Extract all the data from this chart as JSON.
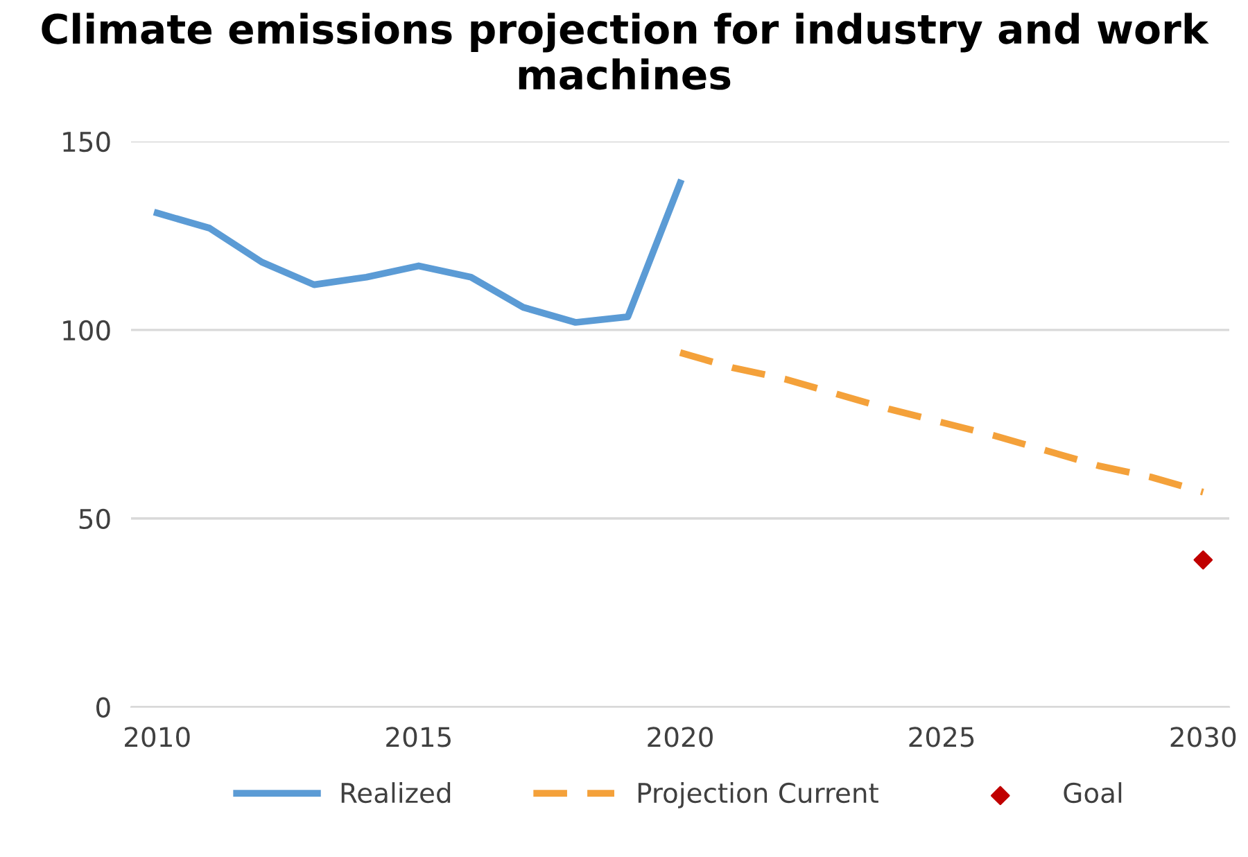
{
  "chart_data": {
    "type": "line",
    "title": "Climate emissions projection for industry and work machines",
    "x": [
      2010,
      2011,
      2012,
      2013,
      2014,
      2015,
      2016,
      2017,
      2018,
      2019,
      2020,
      2021,
      2022,
      2023,
      2024,
      2025,
      2026,
      2027,
      2028,
      2029,
      2030
    ],
    "series": [
      {
        "name": "Realized",
        "color": "#5b9bd5",
        "values": [
          131,
          127,
          118,
          112,
          114,
          117,
          114,
          106,
          102,
          103.5,
          139,
          null,
          null,
          null,
          null,
          null,
          null,
          null,
          null,
          null,
          null
        ],
        "line_style": "solid",
        "marker": "none"
      },
      {
        "name": "Projection Current",
        "color": "#f4a13a",
        "values": [
          null,
          null,
          null,
          null,
          null,
          null,
          null,
          null,
          null,
          null,
          94,
          90,
          87,
          83,
          79,
          75.5,
          72,
          68,
          64,
          61,
          57
        ],
        "line_style": "dashed",
        "marker": "none"
      },
      {
        "name": "Goal",
        "type": "scatter",
        "color": "#c00000",
        "values": [
          null,
          null,
          null,
          null,
          null,
          null,
          null,
          null,
          null,
          null,
          null,
          null,
          null,
          null,
          null,
          null,
          null,
          null,
          null,
          null,
          39
        ],
        "marker": "diamond"
      }
    ],
    "xlim": [
      2009.5,
      2030.5
    ],
    "xticks": [
      2010,
      2015,
      2020,
      2025,
      2030
    ],
    "ylim": [
      0,
      150
    ],
    "yticks": [
      0,
      50,
      100,
      150
    ],
    "grid": "y",
    "legend": "bottom"
  }
}
